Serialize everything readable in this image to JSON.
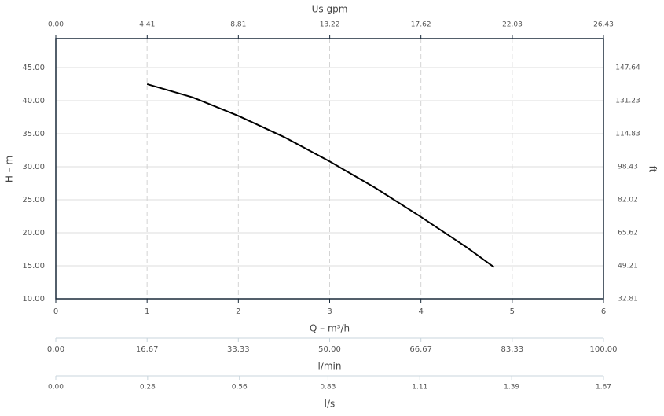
{
  "chart_data": {
    "type": "line",
    "x": [
      1,
      1.5,
      2,
      2.5,
      3,
      3.5,
      4,
      4.5,
      4.8
    ],
    "series": [
      {
        "name": "H",
        "color": "#000000",
        "values": [
          42.5,
          40.5,
          37.7,
          34.5,
          30.8,
          26.8,
          22.4,
          17.8,
          14.8
        ]
      }
    ],
    "xlabel": "Q – m³/h",
    "xlim": [
      0,
      6
    ],
    "xticks": [
      0,
      1,
      2,
      3,
      4,
      5,
      6
    ],
    "ylabel": "H – m",
    "ylim": [
      10,
      49.4
    ],
    "yticks": [
      {
        "value": 10,
        "label": "10.00"
      },
      {
        "value": 15,
        "label": "15.00"
      },
      {
        "value": 20,
        "label": "20.00"
      },
      {
        "value": 25,
        "label": "25.00"
      },
      {
        "value": 30,
        "label": "30.00"
      },
      {
        "value": 35,
        "label": "35.00"
      },
      {
        "value": 40,
        "label": "40.00"
      },
      {
        "value": 45,
        "label": "45.00"
      }
    ],
    "y2label": "ft",
    "y2lim": [
      32.81,
      162.07
    ],
    "y2ticks": [
      32.81,
      49.21,
      65.62,
      82.02,
      98.43,
      114.83,
      131.23,
      147.64
    ],
    "top_axis": {
      "label": "Us gpm",
      "lim": [
        0,
        26.43
      ],
      "ticks": [
        {
          "value": 0,
          "label": "0.00"
        },
        4.41,
        8.81,
        13.22,
        17.62,
        22.03,
        26.43
      ]
    },
    "bottom_axes": [
      {
        "label": "l/min",
        "lim": [
          0,
          100
        ],
        "ticks": [
          {
            "value": 0,
            "label": "0.00"
          },
          16.67,
          33.33,
          {
            "value": 50,
            "label": "50.00"
          },
          66.67,
          83.33,
          {
            "value": 100,
            "label": "100.00"
          }
        ]
      },
      {
        "label": "l/s",
        "lim": [
          0,
          1.67
        ],
        "ticks": [
          {
            "value": 0,
            "label": "0.00"
          },
          0.28,
          0.56,
          0.83,
          1.11,
          1.39,
          1.67
        ]
      }
    ],
    "grid": true
  }
}
